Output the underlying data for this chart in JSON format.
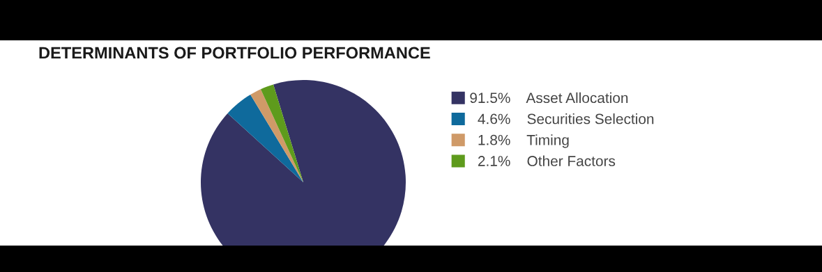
{
  "chart_data": {
    "type": "pie",
    "title": "DETERMINANTS OF PORTFOLIO PERFORMANCE",
    "categories": [
      "Asset Allocation",
      "Securities Selection",
      "Timing",
      "Other Factors"
    ],
    "values": [
      91.5,
      4.6,
      1.8,
      2.1
    ],
    "value_labels": [
      "91.5%",
      "4.6%",
      "1.8%",
      "2.1%"
    ],
    "colors": [
      "#343363",
      "#0f6a9c",
      "#cf9a68",
      "#5e9b1c"
    ],
    "legend": "right"
  }
}
